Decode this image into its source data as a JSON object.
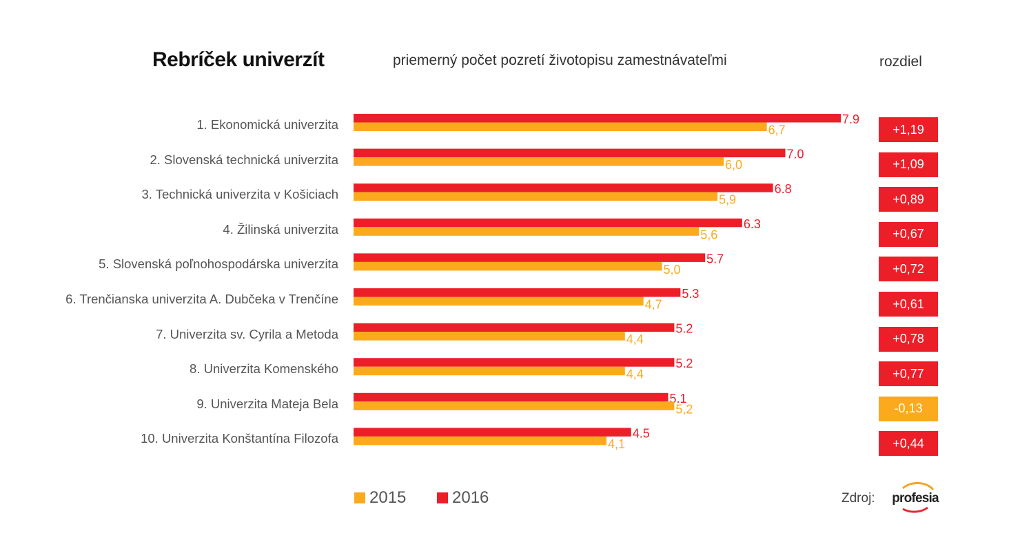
{
  "header": {
    "title": "Rebríček univerzít",
    "subtitle": "priemerný počet pozretí životopisu zamestnávateľmi",
    "diff_heading": "rozdiel"
  },
  "colors": {
    "series_2015": "#FBAA1E",
    "series_2016": "#EC1F29",
    "positive_diff": "#EC1F29",
    "negative_diff": "#FBAA1E"
  },
  "chart_data": {
    "type": "bar",
    "orientation": "horizontal",
    "title": "Rebríček univerzít",
    "subtitle": "priemerný počet pozretí životopisu zamestnávateľmi",
    "xlabel": "",
    "ylabel": "",
    "xlim": [
      0,
      9
    ],
    "grid": false,
    "legend_position": "bottom-left",
    "categories": [
      "1. Ekonomická univerzita",
      "2. Slovenská technická univerzita",
      "3. Technická univerzita v Košiciach",
      "4. Žilinská univerzita",
      "5. Slovenská poľnohospodárska univerzita",
      "6. Trenčianska univerzita A. Dubčeka v Trenčíne",
      "7. Univerzita sv. Cyrila a Metoda",
      "8. Univerzita Komenského",
      "9. Univerzita Mateja Bela",
      "10. Univerzita Konštantína Filozofa"
    ],
    "series": [
      {
        "name": "2016",
        "color": "#EC1F29",
        "values": [
          7.9,
          7.0,
          6.8,
          6.3,
          5.7,
          5.3,
          5.2,
          5.2,
          5.1,
          4.5
        ],
        "labels": [
          "7.9",
          "7.0",
          "6.8",
          "6.3",
          "5.7",
          "5.3",
          "5.2",
          "5.2",
          "5.1",
          "4.5"
        ]
      },
      {
        "name": "2015",
        "color": "#FBAA1E",
        "values": [
          6.7,
          6.0,
          5.9,
          5.6,
          5.0,
          4.7,
          4.4,
          4.4,
          5.2,
          4.1
        ],
        "labels": [
          "6,7",
          "6,0",
          "5,9",
          "5,6",
          "5,0",
          "4,7",
          "4,4",
          "4,4",
          "5,2",
          "4,1"
        ]
      }
    ],
    "differences": {
      "label": "rozdiel",
      "values": [
        "+1,19",
        "+1,09",
        "+0,89",
        "+0,67",
        "+0,72",
        "+0,61",
        "+0,78",
        "+0,77",
        "-0,13",
        "+0,44"
      ],
      "negative": [
        false,
        false,
        false,
        false,
        false,
        false,
        false,
        false,
        true,
        false
      ]
    }
  },
  "legend": {
    "items": [
      {
        "label": "2015",
        "color": "#FBAA1E"
      },
      {
        "label": "2016",
        "color": "#EC1F29"
      }
    ]
  },
  "source": {
    "label": "Zdroj:",
    "logo_text": "profesia"
  }
}
